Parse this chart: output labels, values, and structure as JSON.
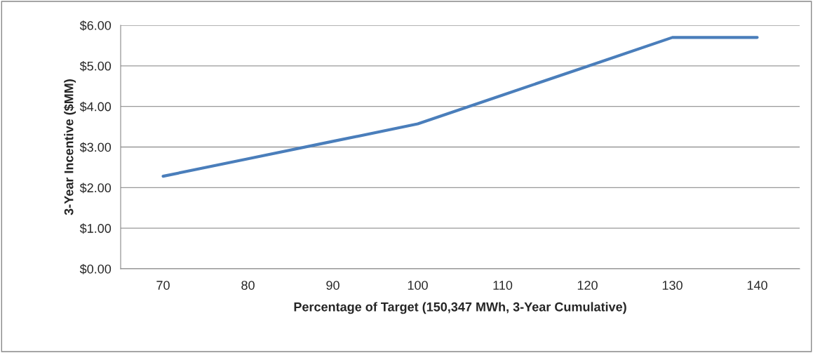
{
  "chart_data": {
    "type": "line",
    "xlabel": "Percentage of Target (150,347 MWh, 3-Year Cumulative)",
    "ylabel": "3-Year Incentive ($MM)",
    "categories": [
      "70",
      "80",
      "90",
      "100",
      "110",
      "120",
      "130",
      "140"
    ],
    "series": [
      {
        "color": "#4a7ebb",
        "values": [
          2.28,
          2.71,
          3.14,
          3.57,
          4.28,
          4.99,
          5.7,
          5.7
        ]
      }
    ],
    "ylim": [
      0,
      6
    ],
    "yticks": [
      {
        "value": 0,
        "label": "$0.00"
      },
      {
        "value": 1,
        "label": "$1.00"
      },
      {
        "value": 2,
        "label": "$2.00"
      },
      {
        "value": 3,
        "label": "$3.00"
      },
      {
        "value": 4,
        "label": "$4.00"
      },
      {
        "value": 5,
        "label": "$5.00"
      },
      {
        "value": 6,
        "label": "$6.00"
      }
    ],
    "grid": "y",
    "legend": false,
    "marker": "none",
    "line_style": "solid"
  }
}
